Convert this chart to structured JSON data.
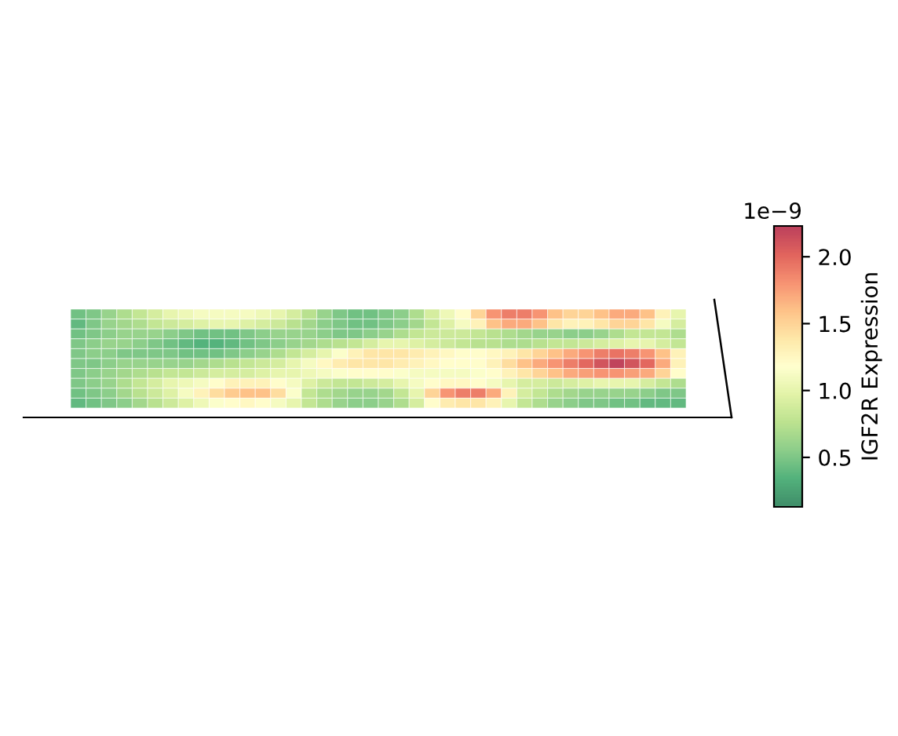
{
  "chart_data": {
    "type": "heatmap",
    "categories": [
      null,
      null,
      null,
      null,
      null,
      null,
      null,
      null,
      null,
      null,
      null,
      null,
      null,
      null,
      null,
      null,
      null,
      null,
      null,
      null,
      null,
      null,
      null,
      null,
      null,
      null,
      null,
      null,
      null,
      null,
      null,
      null,
      null,
      null,
      null,
      null,
      null,
      null,
      null,
      null
    ],
    "y_categories": [
      null,
      null,
      null,
      null,
      null,
      null,
      null,
      null,
      null,
      null
    ],
    "cells": [
      [
        0.45,
        0.5,
        0.6,
        0.7,
        0.8,
        0.9,
        1.0,
        1.05,
        1.1,
        1.1,
        1.1,
        1.1,
        1.05,
        1.0,
        0.9,
        0.75,
        0.6,
        0.5,
        0.45,
        0.45,
        0.5,
        0.55,
        0.7,
        0.9,
        1.05,
        1.2,
        1.5,
        1.8,
        1.9,
        1.9,
        1.8,
        1.6,
        1.5,
        1.5,
        1.6,
        1.7,
        1.7,
        1.6,
        1.3,
        1.0
      ],
      [
        0.4,
        0.5,
        0.6,
        0.65,
        0.7,
        0.8,
        0.85,
        0.9,
        0.95,
        1.0,
        1.0,
        0.95,
        0.9,
        0.85,
        0.75,
        0.65,
        0.55,
        0.5,
        0.45,
        0.45,
        0.5,
        0.55,
        0.65,
        0.8,
        0.95,
        1.1,
        1.3,
        1.6,
        1.7,
        1.7,
        1.6,
        1.4,
        1.3,
        1.3,
        1.4,
        1.5,
        1.5,
        1.4,
        1.1,
        0.9
      ],
      [
        0.45,
        0.5,
        0.55,
        0.6,
        0.6,
        0.6,
        0.55,
        0.5,
        0.45,
        0.45,
        0.45,
        0.5,
        0.55,
        0.6,
        0.6,
        0.6,
        0.55,
        0.5,
        0.5,
        0.55,
        0.6,
        0.7,
        0.8,
        0.85,
        0.85,
        0.85,
        0.8,
        0.75,
        0.7,
        0.65,
        0.6,
        0.6,
        0.55,
        0.55,
        0.6,
        0.7,
        0.8,
        0.8,
        0.8,
        0.7
      ],
      [
        0.5,
        0.55,
        0.6,
        0.6,
        0.55,
        0.5,
        0.45,
        0.4,
        0.35,
        0.35,
        0.4,
        0.45,
        0.5,
        0.55,
        0.6,
        0.65,
        0.7,
        0.75,
        0.8,
        0.9,
        1.0,
        1.0,
        0.95,
        0.9,
        0.85,
        0.8,
        0.75,
        0.75,
        0.7,
        0.7,
        0.75,
        0.8,
        0.8,
        0.85,
        0.9,
        0.95,
        1.0,
        1.0,
        0.9,
        0.8
      ],
      [
        0.5,
        0.55,
        0.55,
        0.5,
        0.5,
        0.5,
        0.5,
        0.45,
        0.45,
        0.45,
        0.5,
        0.55,
        0.6,
        0.7,
        0.8,
        0.9,
        1.0,
        1.15,
        1.3,
        1.4,
        1.4,
        1.4,
        1.35,
        1.3,
        1.25,
        1.2,
        1.2,
        1.25,
        1.3,
        1.4,
        1.5,
        1.6,
        1.7,
        1.8,
        1.9,
        1.95,
        1.9,
        1.8,
        1.6,
        1.3
      ],
      [
        0.5,
        0.5,
        0.55,
        0.6,
        0.6,
        0.6,
        0.6,
        0.6,
        0.65,
        0.7,
        0.75,
        0.8,
        0.85,
        0.9,
        1.0,
        1.1,
        1.25,
        1.35,
        1.4,
        1.4,
        1.4,
        1.35,
        1.3,
        1.25,
        1.2,
        1.2,
        1.2,
        1.3,
        1.45,
        1.6,
        1.7,
        1.8,
        1.9,
        2.0,
        2.1,
        2.2,
        2.1,
        2.0,
        1.7,
        1.3
      ],
      [
        0.5,
        0.55,
        0.6,
        0.65,
        0.7,
        0.75,
        0.8,
        0.8,
        0.85,
        0.9,
        0.9,
        0.9,
        0.95,
        1.0,
        1.0,
        1.05,
        1.1,
        1.15,
        1.2,
        1.2,
        1.2,
        1.15,
        1.1,
        1.1,
        1.1,
        1.1,
        1.15,
        1.2,
        1.3,
        1.4,
        1.5,
        1.6,
        1.7,
        1.75,
        1.8,
        1.8,
        1.75,
        1.7,
        1.5,
        1.2
      ],
      [
        0.5,
        0.55,
        0.6,
        0.7,
        0.8,
        0.9,
        1.0,
        1.05,
        1.1,
        1.2,
        1.3,
        1.3,
        1.3,
        1.2,
        1.1,
        0.95,
        0.85,
        0.8,
        0.8,
        0.85,
        0.9,
        1.0,
        1.1,
        1.2,
        1.25,
        1.25,
        1.2,
        1.1,
        1.0,
        0.9,
        0.9,
        0.85,
        0.9,
        0.95,
        1.0,
        1.0,
        1.0,
        0.9,
        0.8,
        0.7
      ],
      [
        0.45,
        0.5,
        0.55,
        0.65,
        0.75,
        0.85,
        0.95,
        1.1,
        1.3,
        1.45,
        1.55,
        1.6,
        1.6,
        1.45,
        1.15,
        0.8,
        0.7,
        0.65,
        0.6,
        0.6,
        0.65,
        0.8,
        1.0,
        1.5,
        1.8,
        1.9,
        1.9,
        1.7,
        1.3,
        0.9,
        0.8,
        0.7,
        0.65,
        0.6,
        0.6,
        0.6,
        0.6,
        0.55,
        0.5,
        0.5
      ],
      [
        0.4,
        0.45,
        0.5,
        0.55,
        0.65,
        0.75,
        0.85,
        0.95,
        1.05,
        1.15,
        1.2,
        1.25,
        1.2,
        1.1,
        1.0,
        0.8,
        0.7,
        0.6,
        0.55,
        0.55,
        0.6,
        0.7,
        0.9,
        1.2,
        1.35,
        1.4,
        1.4,
        1.3,
        1.0,
        0.8,
        0.7,
        0.6,
        0.55,
        0.5,
        0.5,
        0.45,
        0.45,
        0.4,
        0.4,
        0.4
      ]
    ],
    "clim": [
      0.13,
      2.23
    ],
    "cticks": [
      0.5,
      {
        "value": 1,
        "label": "1.0"
      },
      1.5,
      {
        "value": 2,
        "label": "2.0"
      }
    ],
    "clabel": "IGF2R Expression",
    "annotations": [
      "1e−9"
    ]
  }
}
